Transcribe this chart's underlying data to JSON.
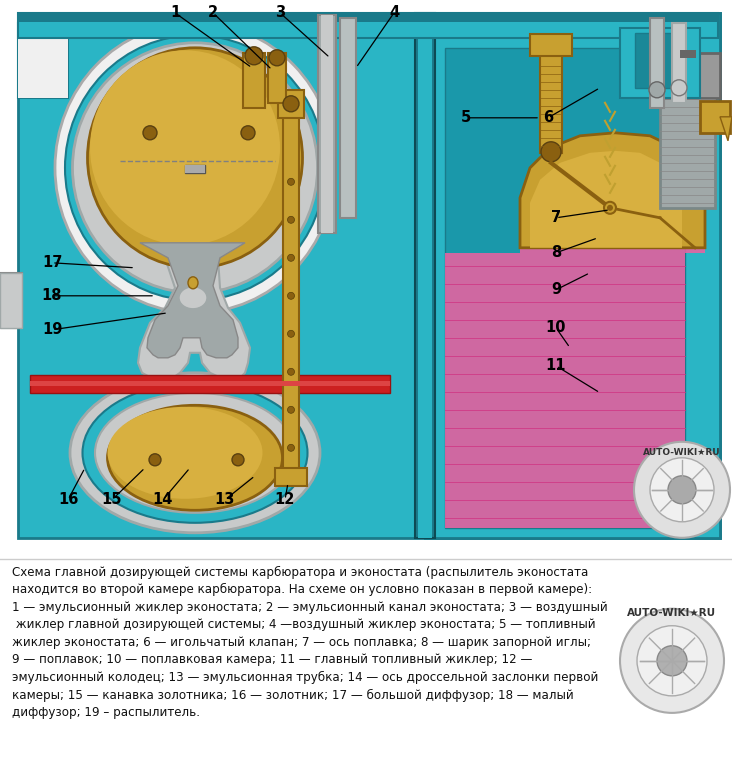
{
  "bg_color": "#ffffff",
  "caption_text": "Схема главной дозирующей системы карбюратора и эконостата (распылитель эконостата\nнаходится во второй камере карбюратора. На схеме он условно показан в первой камере):\n1 — эмульсионный жиклер эконостата; 2 — эмульсионный канал эконостата; 3 — воздушный\n жиклер главной дозирующей системы; 4 —воздушный жиклер эконостата; 5 — топливный\nжиклер эконостата; 6 — игольчатый клапан; 7 — ось поплавка; 8 — шарик запорной иглы;\n9 — поплавок; 10 — поплавковая камера; 11 — главный топливный жиклер; 12 —\nэмульсионный колодец; 13 — эмульсионная трубка; 14 — ось дроссельной заслонки первой\nкамеры; 15 — канавка золотника; 16 — золотник; 17 — большой диффузор; 18 — малый\nдиффузор; 19 – распылитель.",
  "watermark": "AUTO-WIKI★RU",
  "label_nums": [
    "1",
    "2",
    "3",
    "4",
    "5",
    "6",
    "7",
    "8",
    "9",
    "10",
    "11",
    "12",
    "13",
    "14",
    "15",
    "16",
    "17",
    "18",
    "19"
  ],
  "diagram_color": "#2ab5c5",
  "diagram_dark": "#1a7a8a",
  "gray_light": "#c8caca",
  "gray_mid": "#a0a8a8",
  "gold": "#c8a030",
  "gold_dark": "#8a6010",
  "pink_fuel": "#f060a0",
  "red_gasket": "#cc2020",
  "white": "#f0f0f0"
}
